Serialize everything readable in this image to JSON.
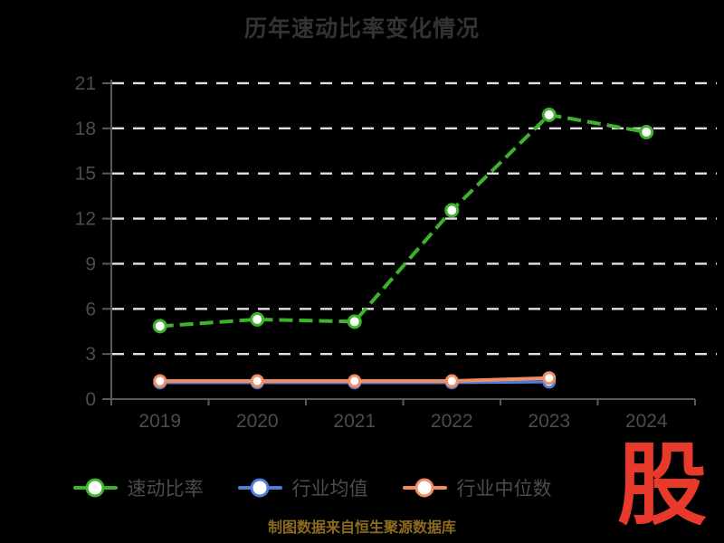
{
  "chart_data": {
    "type": "line",
    "title": "历年速动比率变化情况",
    "categories": [
      "2019",
      "2020",
      "2021",
      "2022",
      "2023",
      "2024"
    ],
    "series": [
      {
        "name": "速动比率",
        "color": "#3db32c",
        "line_style": "dashed",
        "marker": "circle-white-fill",
        "values": [
          4.85,
          5.3,
          5.15,
          12.55,
          18.9,
          17.75
        ]
      },
      {
        "name": "行业均值",
        "color": "#4f7ed9",
        "line_style": "solid",
        "marker": "circle-white-fill",
        "values": [
          1.1,
          1.1,
          1.1,
          1.1,
          1.15,
          null
        ]
      },
      {
        "name": "行业中位数",
        "color": "#f28d62",
        "line_style": "solid",
        "marker": "circle-white-fill",
        "values": [
          1.2,
          1.2,
          1.2,
          1.2,
          1.4,
          null
        ]
      }
    ],
    "xlabel": "",
    "ylabel": "",
    "ylim": [
      0,
      21
    ],
    "y_ticks": [
      0,
      3,
      6,
      9,
      12,
      15,
      18,
      21
    ],
    "grid": "horizontal-dashed",
    "legend_position": "bottom"
  },
  "footer": {
    "source": "制图数据来自恒生聚源数据库",
    "logo": "股"
  },
  "theme": {
    "background": "#000000",
    "title_color": "#333333",
    "axis_color": "#5a5a5a",
    "label_color": "#4c4c4c",
    "grid_color": "#e2e2e2",
    "legend_text_color": "#4c4c4c",
    "caption_color": "#8d6b1e",
    "logo_color": "#e8392b",
    "marker_fill": "#ffffff"
  }
}
